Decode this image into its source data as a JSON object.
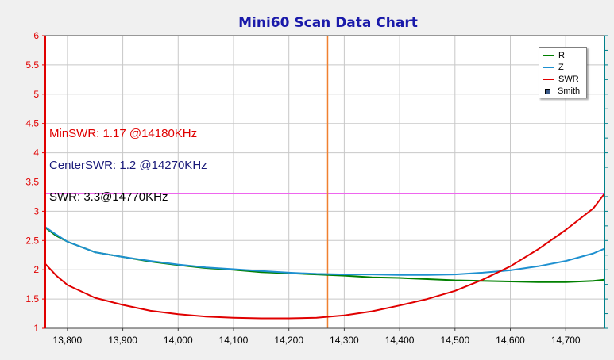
{
  "chart_data": {
    "type": "line",
    "title": "Mini60 Scan Data Chart",
    "x_ticks": [
      13800,
      13900,
      14000,
      14100,
      14200,
      14300,
      14400,
      14500,
      14600,
      14700
    ],
    "x_tick_labels": [
      "13,800",
      "13,900",
      "14,000",
      "14,100",
      "14,200",
      "14,300",
      "14,400",
      "14,500",
      "14,600",
      "14,700"
    ],
    "xlim": [
      13760,
      14770
    ],
    "ylim": [
      1,
      6
    ],
    "y_ticks": [
      1,
      1.5,
      2,
      2.5,
      3,
      3.5,
      4,
      4.5,
      5,
      5.5,
      6
    ],
    "y_tick_labels": [
      "1",
      "1.5",
      "2",
      "2.5",
      "3",
      "3.5",
      "4",
      "4.5",
      "5",
      "5.5",
      "6"
    ],
    "grid": true,
    "legend_position": "top-right",
    "cursor_x": 14270,
    "swr_threshold": 3.3,
    "series": [
      {
        "name": "R",
        "color": "#008000",
        "x": [
          13760,
          13780,
          13800,
          13850,
          13900,
          13950,
          14000,
          14050,
          14100,
          14150,
          14200,
          14250,
          14300,
          14350,
          14400,
          14450,
          14500,
          14550,
          14600,
          14650,
          14700,
          14750,
          14770
        ],
        "values": [
          2.72,
          2.58,
          2.48,
          2.3,
          2.22,
          2.14,
          2.08,
          2.03,
          2.0,
          1.96,
          1.94,
          1.92,
          1.9,
          1.87,
          1.86,
          1.84,
          1.82,
          1.81,
          1.8,
          1.79,
          1.79,
          1.81,
          1.83
        ]
      },
      {
        "name": "Z",
        "color": "#1e90d0",
        "x": [
          13760,
          13780,
          13800,
          13850,
          13900,
          13950,
          14000,
          14050,
          14100,
          14150,
          14200,
          14250,
          14300,
          14350,
          14400,
          14450,
          14500,
          14550,
          14600,
          14650,
          14700,
          14750,
          14770
        ],
        "values": [
          2.73,
          2.6,
          2.48,
          2.3,
          2.22,
          2.15,
          2.09,
          2.04,
          2.01,
          1.98,
          1.95,
          1.93,
          1.92,
          1.92,
          1.91,
          1.91,
          1.92,
          1.95,
          1.99,
          2.06,
          2.15,
          2.28,
          2.36
        ]
      },
      {
        "name": "SWR",
        "color": "#e00000",
        "x": [
          13760,
          13780,
          13800,
          13850,
          13900,
          13950,
          14000,
          14050,
          14100,
          14150,
          14200,
          14250,
          14300,
          14350,
          14400,
          14450,
          14500,
          14550,
          14600,
          14650,
          14700,
          14750,
          14770
        ],
        "values": [
          2.1,
          1.9,
          1.74,
          1.52,
          1.4,
          1.3,
          1.24,
          1.2,
          1.18,
          1.17,
          1.17,
          1.18,
          1.22,
          1.29,
          1.39,
          1.5,
          1.64,
          1.83,
          2.06,
          2.35,
          2.68,
          3.05,
          3.3
        ]
      }
    ],
    "legend": [
      "R",
      "Z",
      "SWR",
      "Smith"
    ]
  },
  "annotations": {
    "min_swr": "MinSWR: 1.17 @14180KHz",
    "center_swr": "CenterSWR: 1.2 @14270KHz",
    "swr_marker": "SWR: 3.3@14770KHz"
  },
  "colors": {
    "title": "#1a1aaa",
    "left_axis": "#e00000",
    "right_axis": "#00808b",
    "cursor": "#f08030",
    "threshold": "#ee66ee",
    "min_swr_text": "#e00000",
    "center_swr_text": "#1a1a7a",
    "swr_marker_text": "#000000"
  }
}
